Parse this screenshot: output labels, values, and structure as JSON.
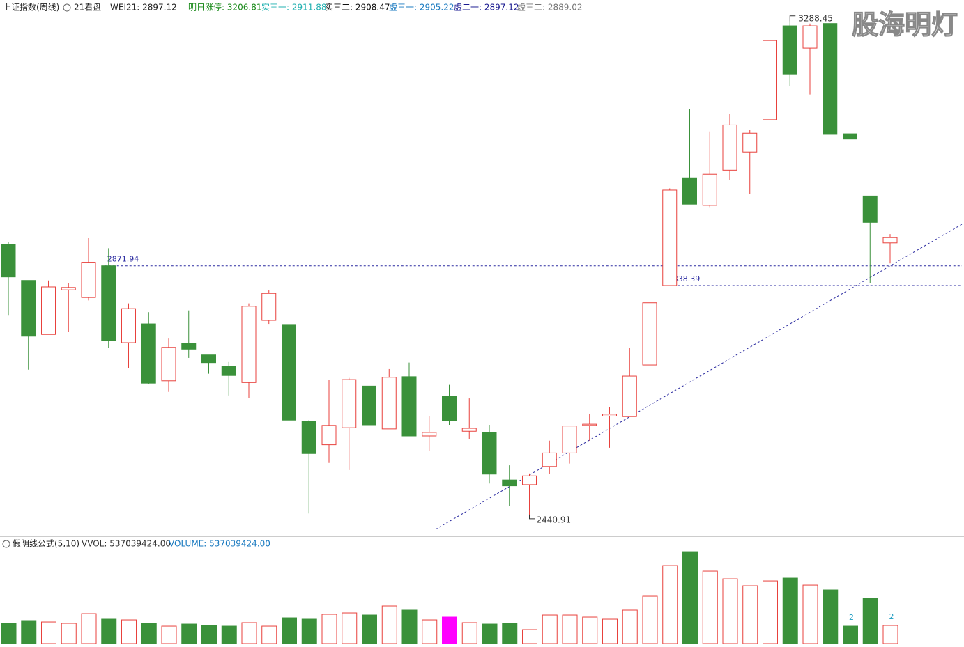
{
  "header": {
    "title": "上证指数(周线)",
    "items": [
      "21看盘",
      "WEI21: 2897.12",
      "明日涨停: 3206.81",
      "实三一: 2911.88",
      "实三二: 2908.47",
      "虚三一: 2905.22",
      "虚二一: 2897.12",
      "虚三二: 2889.02"
    ]
  },
  "watermark": "股海明灯",
  "chart_data": [
    {
      "type": "candlestick",
      "open": [
        2908,
        2847,
        2755,
        2831,
        2818,
        2871.94,
        2741,
        2773,
        2676,
        2740,
        2720,
        2701,
        2673,
        2779,
        2772,
        2607,
        2567,
        2596,
        2667,
        2594,
        2683,
        2582,
        2650,
        2590,
        2588,
        2507,
        2499,
        2530,
        2553,
        2600,
        2616,
        2615,
        2703,
        2838.39,
        3022,
        2975,
        3035,
        3066,
        3121,
        3281,
        3243,
        3285,
        3097,
        2991,
        2911
      ],
      "high": [
        2913,
        2847,
        2847,
        2842,
        2919,
        2902,
        2808,
        2793,
        2748,
        2796,
        2720,
        2708,
        2808,
        2830,
        2777,
        2609,
        2678,
        2681,
        2667,
        2696,
        2707,
        2616,
        2669,
        2646,
        2601,
        2532,
        2518,
        2574,
        2599,
        2620,
        2631,
        2732,
        2809,
        3004,
        3139,
        3101,
        3131,
        3104,
        3263,
        3288.45,
        3285,
        3285,
        3116,
        2991,
        2926
      ],
      "low": [
        2787,
        2695,
        2755,
        2760,
        2813,
        2732,
        2698,
        2670,
        2657,
        2715,
        2688,
        2651,
        2647,
        2773,
        2538,
        2450,
        2536,
        2524,
        2601,
        2594,
        2582,
        2557,
        2601,
        2577,
        2501,
        2463,
        2440.91,
        2517,
        2535,
        2574,
        2562,
        2615,
        2703,
        2838.39,
        2977,
        2972,
        3018,
        2995,
        3121,
        3178,
        3164,
        3096,
        3058,
        2843,
        2876
      ],
      "close": [
        2853,
        2752,
        2836,
        2835,
        2878,
        2745,
        2799,
        2672,
        2733,
        2730,
        2707,
        2685,
        2803,
        2825,
        2609,
        2552,
        2600,
        2678,
        2601,
        2682,
        2582,
        2588,
        2608,
        2595,
        2517,
        2497,
        2514,
        2553,
        2599,
        2602,
        2619,
        2684,
        2809,
        3001,
        2977,
        3028,
        3112,
        3098,
        3256,
        3199,
        3281,
        3096,
        3088,
        2946,
        2920
      ],
      "levels": [
        2871.94,
        2838.39
      ],
      "ylim": [
        2417,
        3325
      ],
      "up_color": "#e8413c",
      "down_color": "#3a913a",
      "level_color": "#2a2aa0"
    },
    {
      "type": "bar",
      "title": "假阴线公式(5,10)",
      "subtitle": [
        "VVOL: 537039424.00",
        "VOLUME: 537039424.00"
      ],
      "values": [
        599000000,
        682000000,
        640000000,
        599000000,
        888000000,
        723000000,
        702000000,
        599000000,
        516000000,
        578000000,
        537000000,
        516000000,
        620000000,
        516000000,
        764000000,
        723000000,
        868000000,
        909000000,
        847000000,
        1116000000,
        992000000,
        702000000,
        785000000,
        620000000,
        578000000,
        599000000,
        413000000,
        847000000,
        847000000,
        785000000,
        723000000,
        992000000,
        1405000000,
        2314000000,
        2727000000,
        2149000000,
        1921000000,
        1715000000,
        1859000000,
        1942000000,
        1735000000,
        1591000000,
        516000000,
        1343000000,
        537039424
      ],
      "colors": [
        "#3a913a",
        "#3a913a",
        "#e8413c",
        "#e8413c",
        "#e8413c",
        "#3a913a",
        "#e8413c",
        "#3a913a",
        "#e8413c",
        "#3a913a",
        "#3a913a",
        "#3a913a",
        "#e8413c",
        "#e8413c",
        "#3a913a",
        "#3a913a",
        "#e8413c",
        "#e8413c",
        "#3a913a",
        "#e8413c",
        "#3a913a",
        "#e8413c",
        "#ff00ff",
        "#e8413c",
        "#3a913a",
        "#3a913a",
        "#e8413c",
        "#e8413c",
        "#e8413c",
        "#e8413c",
        "#e8413c",
        "#e8413c",
        "#e8413c",
        "#e8413c",
        "#3a913a",
        "#e8413c",
        "#e8413c",
        "#e8413c",
        "#e8413c",
        "#3a913a",
        "#e8413c",
        "#3a913a",
        "#3a913a",
        "#3a913a",
        "#e8413c"
      ],
      "signals": [
        null,
        null,
        null,
        null,
        null,
        null,
        null,
        null,
        null,
        null,
        null,
        null,
        null,
        null,
        null,
        null,
        null,
        null,
        null,
        null,
        null,
        null,
        null,
        null,
        null,
        null,
        null,
        null,
        null,
        null,
        null,
        null,
        null,
        null,
        null,
        null,
        null,
        null,
        null,
        null,
        null,
        null,
        "2",
        null,
        "2"
      ],
      "ylim": [
        0,
        2770000000
      ]
    }
  ]
}
